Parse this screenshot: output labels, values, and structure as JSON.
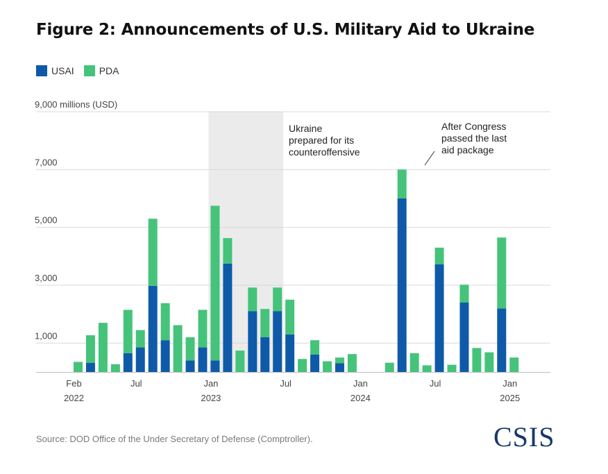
{
  "figure": {
    "title": "Figure 2: Announcements of U.S. Military Aid to Ukraine",
    "source": "Source: DOD Office of the Under Secretary of Defense (Comptroller).",
    "logo": "CSIS"
  },
  "colors": {
    "usai": "#0f5aa8",
    "pda": "#45c37a",
    "grid": "#d9d9d9",
    "shade": "#ebebeb"
  },
  "chart_data": {
    "type": "bar",
    "stacked": true,
    "ylabel": "9,000 millions (USD)",
    "ylim": [
      0,
      9000
    ],
    "y_ticks": [
      {
        "value": 1000,
        "label": "1,000"
      },
      {
        "value": 3000,
        "label": "3,000"
      },
      {
        "value": 5000,
        "label": "5,000"
      },
      {
        "value": 7000,
        "label": "7,000"
      },
      {
        "value": 9000,
        "label": "9,000 millions (USD)"
      }
    ],
    "gridlines": true,
    "legend_position": "top-left",
    "categories": [
      "2022-02",
      "2022-03",
      "2022-04",
      "2022-05",
      "2022-06",
      "2022-07",
      "2022-08",
      "2022-09",
      "2022-10",
      "2022-11",
      "2022-12",
      "2023-01",
      "2023-02",
      "2023-03",
      "2023-04",
      "2023-05",
      "2023-06",
      "2023-07",
      "2023-08",
      "2023-09",
      "2023-10",
      "2023-11",
      "2023-12",
      "2024-01",
      "2024-02",
      "2024-03",
      "2024-04",
      "2024-05",
      "2024-06",
      "2024-07",
      "2024-08",
      "2024-09",
      "2024-10",
      "2024-11",
      "2024-12",
      "2025-01"
    ],
    "x_tick_labels": [
      {
        "index": 0,
        "line1": "Feb",
        "line2": "2022"
      },
      {
        "index": 5,
        "line1": "Jul",
        "line2": ""
      },
      {
        "index": 11,
        "line1": "Jan",
        "line2": "2023"
      },
      {
        "index": 17,
        "line1": "Jul",
        "line2": ""
      },
      {
        "index": 23,
        "line1": "Jan",
        "line2": "2024"
      },
      {
        "index": 29,
        "line1": "Jul",
        "line2": ""
      },
      {
        "index": 35,
        "line1": "Jan",
        "line2": "2025"
      }
    ],
    "bars": [
      {
        "period": "2022-02a",
        "usai": 0,
        "pda": 350
      },
      {
        "period": "2022-02b",
        "usai": 320,
        "pda": 950
      },
      {
        "period": "2022-03",
        "usai": 0,
        "pda": 1700
      },
      {
        "period": "2022-04",
        "usai": 0,
        "pda": 270
      },
      {
        "period": "2022-05",
        "usai": 650,
        "pda": 1500
      },
      {
        "period": "2022-06",
        "usai": 850,
        "pda": 600
      },
      {
        "period": "2022-07",
        "usai": 2980,
        "pda": 2320
      },
      {
        "period": "2022-08",
        "usai": 1100,
        "pda": 1280
      },
      {
        "period": "2022-09",
        "usai": 0,
        "pda": 1620
      },
      {
        "period": "2022-10",
        "usai": 400,
        "pda": 800
      },
      {
        "period": "2022-11",
        "usai": 850,
        "pda": 1300
      },
      {
        "period": "2022-12",
        "usai": 400,
        "pda": 5350
      },
      {
        "period": "2023-01",
        "usai": 3750,
        "pda": 880
      },
      {
        "period": "2023-02",
        "usai": 0,
        "pda": 740
      },
      {
        "period": "2023-03",
        "usai": 2100,
        "pda": 820
      },
      {
        "period": "2023-04",
        "usai": 1200,
        "pda": 980
      },
      {
        "period": "2023-05",
        "usai": 2100,
        "pda": 820
      },
      {
        "period": "2023-06",
        "usai": 1300,
        "pda": 1200
      },
      {
        "period": "2023-07",
        "usai": 0,
        "pda": 450
      },
      {
        "period": "2023-08",
        "usai": 600,
        "pda": 500
      },
      {
        "period": "2023-09",
        "usai": 0,
        "pda": 370
      },
      {
        "period": "2023-10",
        "usai": 300,
        "pda": 200
      },
      {
        "period": "2023-11",
        "usai": 0,
        "pda": 620
      },
      {
        "period": "2023-12",
        "usai": 0,
        "pda": 0
      },
      {
        "period": "2024-01",
        "usai": 0,
        "pda": 0
      },
      {
        "period": "2024-02",
        "usai": 0,
        "pda": 320
      },
      {
        "period": "2024-04",
        "usai": 6000,
        "pda": 1000
      },
      {
        "period": "2024-05",
        "usai": 0,
        "pda": 650
      },
      {
        "period": "2024-06",
        "usai": 0,
        "pda": 230
      },
      {
        "period": "2024-07a",
        "usai": 3720,
        "pda": 580
      },
      {
        "period": "2024-07b",
        "usai": 0,
        "pda": 250
      },
      {
        "period": "2024-08",
        "usai": 2400,
        "pda": 620
      },
      {
        "period": "2024-09",
        "usai": 0,
        "pda": 830
      },
      {
        "period": "2024-10",
        "usai": 0,
        "pda": 680
      },
      {
        "period": "2024-11",
        "usai": 2200,
        "pda": 2450
      },
      {
        "period": "2024-12",
        "usai": 0,
        "pda": 500
      }
    ],
    "series": [
      {
        "name": "USAI",
        "color": "#0f5aa8"
      },
      {
        "name": "PDA",
        "color": "#45c37a"
      }
    ],
    "annotations": [
      {
        "text": [
          "Ukraine",
          "prepared for its",
          "counteroffensive"
        ],
        "shaded_range": [
          "2022-12",
          "2023-05"
        ]
      },
      {
        "text": [
          "After Congress",
          "passed the last",
          "aid package"
        ],
        "target": "2024-04"
      }
    ]
  }
}
